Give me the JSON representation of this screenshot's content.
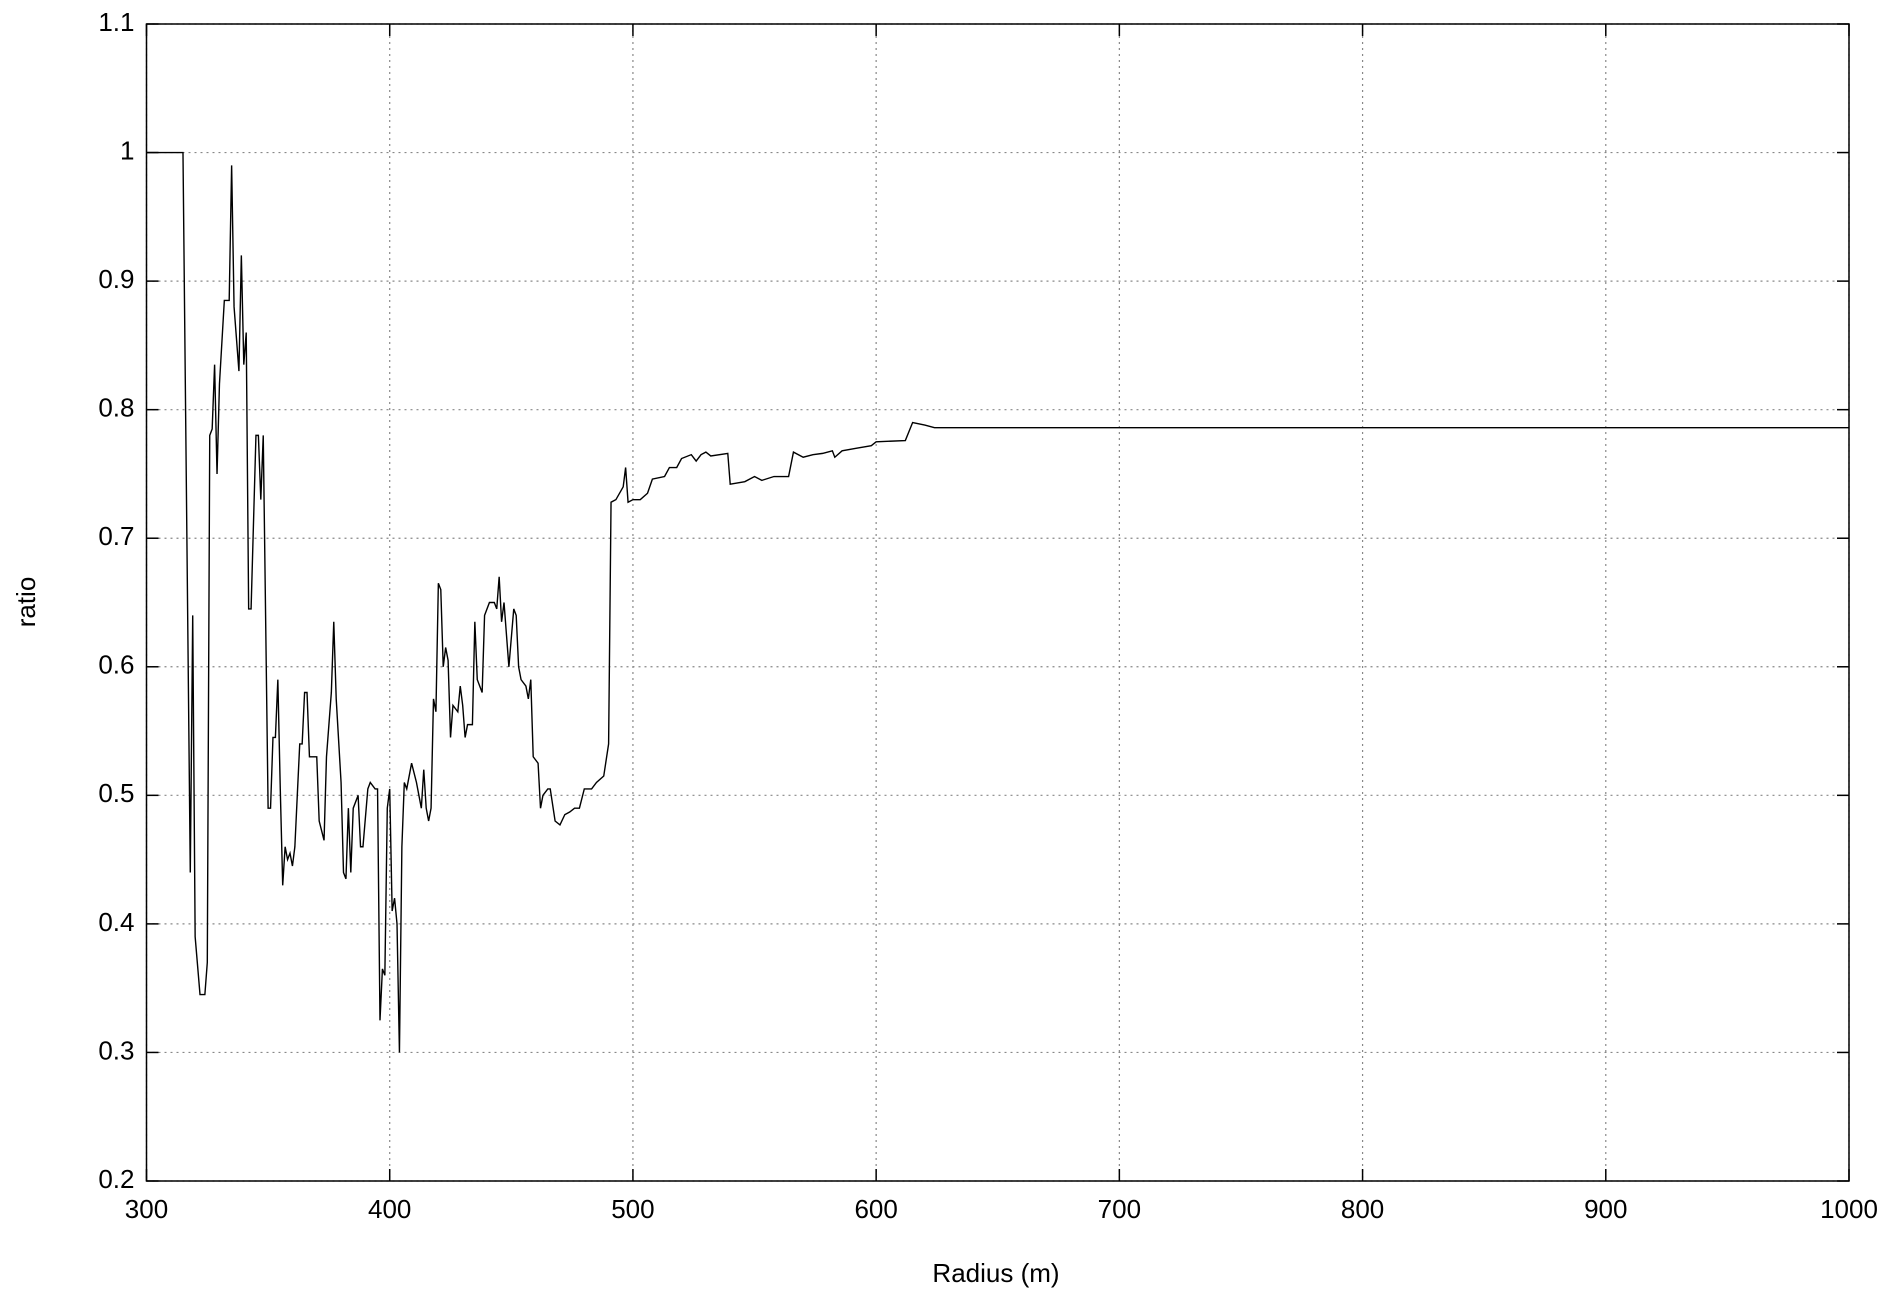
{
  "chart_data": {
    "type": "line",
    "x_label": "Radius (m)",
    "y_label": "ratio",
    "color": "#000000",
    "grid": true,
    "xlim": [
      300,
      1000
    ],
    "xticks": [
      300,
      400,
      500,
      600,
      700,
      800,
      900,
      1000
    ],
    "ylim": [
      0.2,
      1.1
    ],
    "yticks": [
      0.2,
      0.3,
      0.4,
      0.5,
      0.6,
      0.7,
      0.8,
      0.9,
      1,
      1.1
    ],
    "x": [
      300,
      315,
      318,
      319,
      320,
      322,
      324,
      325,
      326,
      327,
      328,
      329,
      330,
      332,
      334,
      335,
      336,
      338,
      339,
      340,
      341,
      342,
      343,
      345,
      346,
      347,
      348,
      350,
      351,
      352,
      353,
      354,
      355,
      356,
      357,
      358,
      359,
      360,
      361,
      362,
      363,
      364,
      365,
      366,
      367,
      370,
      371,
      373,
      374,
      376,
      377,
      378,
      380,
      381,
      382,
      383,
      384,
      385,
      387,
      388,
      389,
      391,
      392,
      394,
      395,
      396,
      397,
      398,
      399,
      400,
      401,
      402,
      403,
      404,
      405,
      406,
      407,
      409,
      411,
      413,
      414,
      415,
      416,
      417,
      418,
      419,
      420,
      421,
      422,
      423,
      424,
      425,
      426,
      428,
      429,
      430,
      431,
      432,
      434,
      435,
      436,
      438,
      439,
      441,
      443,
      444,
      445,
      446,
      447,
      449,
      451,
      452,
      453,
      454,
      456,
      457,
      458,
      459,
      461,
      462,
      463,
      465,
      466,
      468,
      470,
      472,
      474,
      476,
      478,
      480,
      483,
      485,
      488,
      490,
      491,
      493,
      496,
      497,
      498,
      500,
      503,
      506,
      508,
      513,
      515,
      518,
      520,
      524,
      526,
      528,
      530,
      532,
      539,
      540,
      546,
      550,
      553,
      558,
      564,
      566,
      570,
      574,
      578,
      582,
      583,
      586,
      592,
      598,
      600,
      612,
      615,
      620,
      624,
      650,
      1000
    ],
    "values": [
      1.0,
      1.0,
      0.44,
      0.64,
      0.39,
      0.345,
      0.345,
      0.37,
      0.78,
      0.785,
      0.835,
      0.75,
      0.82,
      0.885,
      0.885,
      0.99,
      0.88,
      0.83,
      0.92,
      0.835,
      0.86,
      0.645,
      0.645,
      0.78,
      0.78,
      0.73,
      0.78,
      0.49,
      0.49,
      0.545,
      0.545,
      0.59,
      0.505,
      0.43,
      0.46,
      0.45,
      0.455,
      0.445,
      0.46,
      0.5,
      0.54,
      0.54,
      0.58,
      0.58,
      0.53,
      0.53,
      0.48,
      0.465,
      0.53,
      0.58,
      0.635,
      0.575,
      0.51,
      0.44,
      0.435,
      0.49,
      0.44,
      0.49,
      0.5,
      0.46,
      0.46,
      0.505,
      0.51,
      0.505,
      0.505,
      0.325,
      0.365,
      0.36,
      0.49,
      0.505,
      0.41,
      0.42,
      0.4,
      0.3,
      0.46,
      0.51,
      0.505,
      0.525,
      0.51,
      0.49,
      0.52,
      0.49,
      0.48,
      0.49,
      0.575,
      0.565,
      0.665,
      0.66,
      0.6,
      0.615,
      0.605,
      0.545,
      0.57,
      0.565,
      0.585,
      0.57,
      0.545,
      0.555,
      0.555,
      0.635,
      0.59,
      0.58,
      0.64,
      0.65,
      0.65,
      0.645,
      0.67,
      0.635,
      0.65,
      0.6,
      0.645,
      0.64,
      0.6,
      0.59,
      0.585,
      0.575,
      0.59,
      0.53,
      0.525,
      0.49,
      0.5,
      0.505,
      0.505,
      0.48,
      0.477,
      0.485,
      0.487,
      0.49,
      0.49,
      0.505,
      0.505,
      0.51,
      0.515,
      0.54,
      0.728,
      0.73,
      0.74,
      0.755,
      0.728,
      0.73,
      0.73,
      0.735,
      0.746,
      0.748,
      0.755,
      0.755,
      0.762,
      0.765,
      0.76,
      0.765,
      0.767,
      0.764,
      0.766,
      0.742,
      0.744,
      0.748,
      0.745,
      0.748,
      0.748,
      0.767,
      0.763,
      0.765,
      0.766,
      0.768,
      0.763,
      0.768,
      0.77,
      0.772,
      0.775,
      0.776,
      0.79,
      0.788,
      0.786,
      0.786,
      0.786
    ]
  }
}
